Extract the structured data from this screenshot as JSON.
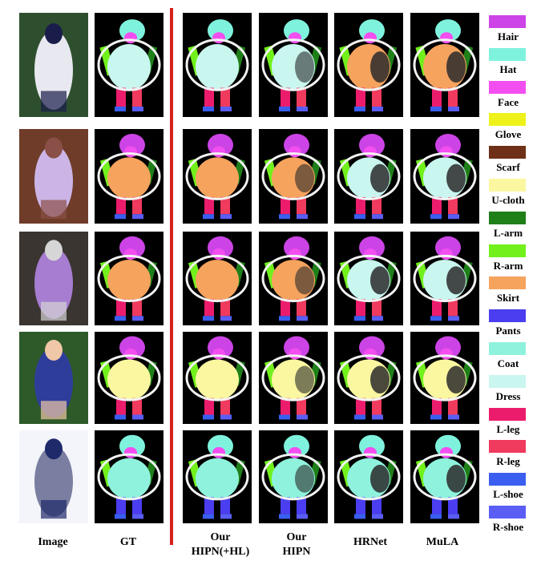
{
  "columns": [
    {
      "id": "image",
      "label": "Image"
    },
    {
      "id": "gt",
      "label": "GT"
    },
    {
      "id": "hipn_hl",
      "label": "Our\nHIPN(+HL)"
    },
    {
      "id": "hipn",
      "label": "Our\nHIPN"
    },
    {
      "id": "hrnet",
      "label": "HRNet"
    },
    {
      "id": "mula",
      "label": "MuLA"
    }
  ],
  "legend": [
    {
      "label": "Hair",
      "color": "#cc44e6"
    },
    {
      "label": "Hat",
      "color": "#7ff2dd"
    },
    {
      "label": "Face",
      "color": "#f24ef0"
    },
    {
      "label": "Glove",
      "color": "#eef21a"
    },
    {
      "label": "Scarf",
      "color": "#6e3016"
    },
    {
      "label": "U-cloth",
      "color": "#fbf7a1"
    },
    {
      "label": "L-arm",
      "color": "#1f7f19"
    },
    {
      "label": "R-arm",
      "color": "#72f01c"
    },
    {
      "label": "Skirt",
      "color": "#f6a35e"
    },
    {
      "label": "Pants",
      "color": "#4a3ef0"
    },
    {
      "label": "Coat",
      "color": "#8ff2dd"
    },
    {
      "label": "Dress",
      "color": "#c9f6ef"
    },
    {
      "label": "L-leg",
      "color": "#ec1c6c"
    },
    {
      "label": "R-leg",
      "color": "#f03a5e"
    },
    {
      "label": "L-shoe",
      "color": "#3a5ef0"
    },
    {
      "label": "R-shoe",
      "color": "#5a5ef4"
    }
  ],
  "rows": [
    {
      "scene": "tennis-player",
      "photo_colors": [
        "#2d4f2d",
        "#e8e8f0",
        "#1a1d4a"
      ],
      "main": "#c9f6ef",
      "hrnet_main": "#f6a35e",
      "mula_main": "#f6a35e"
    },
    {
      "scene": "woman-sitting",
      "photo_colors": [
        "#6f3c2a",
        "#ccb5e6",
        "#8a4f46"
      ],
      "main": "#f6a35e",
      "hrnet_main": "#c9f6ef",
      "mula_main": "#c9f6ef"
    },
    {
      "scene": "girl-umbrella",
      "photo_colors": [
        "#3a3530",
        "#a67dd0",
        "#d6d6d6"
      ],
      "main": "#f6a35e",
      "hrnet_main": "#c9f6ef",
      "mula_main": "#c9f6ef"
    },
    {
      "scene": "child-glove",
      "photo_colors": [
        "#2e5a2a",
        "#2f3d9a",
        "#f0c7a7"
      ],
      "main": "#fbf7a1",
      "hrnet_main": "#fbf7a1",
      "mula_main": "#fbf7a1"
    },
    {
      "scene": "skier-snow",
      "photo_colors": [
        "#f3f5fa",
        "#7a7ea0",
        "#1f2a6a"
      ],
      "main": "#8ff2dd",
      "hrnet_main": "#8ff2dd",
      "mula_main": "#8ff2dd"
    }
  ],
  "divider_color": "#d6201c"
}
